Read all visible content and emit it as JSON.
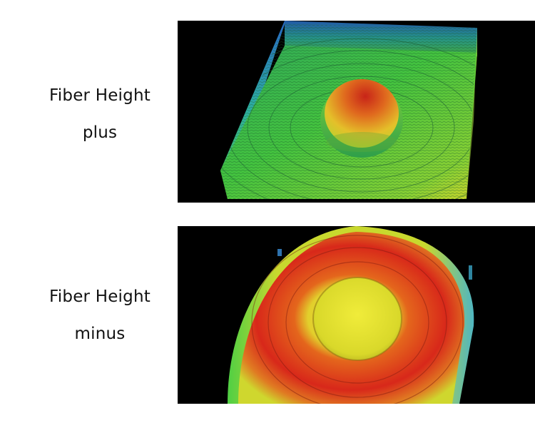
{
  "figures": [
    {
      "caption_line1": "Fiber Height",
      "caption_line2": "plus"
    },
    {
      "caption_line1": "Fiber Height",
      "caption_line2": "minus"
    }
  ],
  "colors": {
    "background": "#ffffff",
    "panel_background": "#000000",
    "heightmap_low": "#1e7fbf",
    "heightmap_mid": "#3cc83c",
    "heightmap_high_yellow": "#e8e02a",
    "heightmap_peak_red": "#d8281a"
  }
}
